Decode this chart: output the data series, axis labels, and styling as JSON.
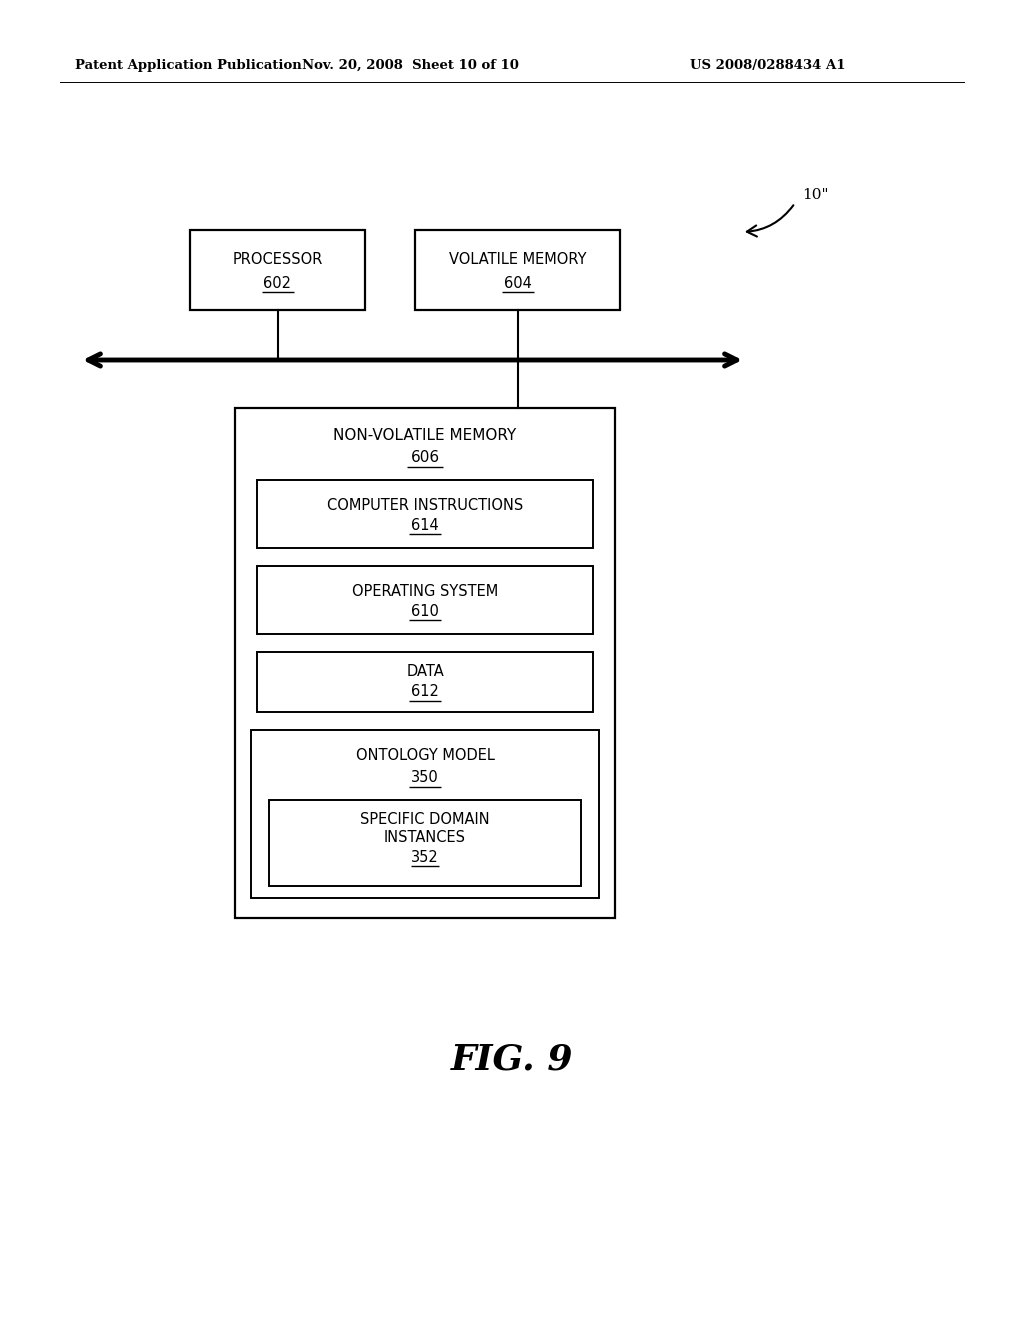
{
  "bg_color": "#ffffff",
  "header_left": "Patent Application Publication",
  "header_mid": "Nov. 20, 2008  Sheet 10 of 10",
  "header_right": "US 2008/0288434 A1",
  "fig_label": "FIG. 9",
  "ref_label": "10\"",
  "processor_label": "PROCESSOR",
  "processor_num": "602",
  "volatile_label": "VOLATILE MEMORY",
  "volatile_num": "604",
  "nonvolatile_label": "NON-VOLATILE MEMORY",
  "nonvolatile_num": "606",
  "comp_instr_label": "COMPUTER INSTRUCTIONS",
  "comp_instr_num": "614",
  "os_label": "OPERATING SYSTEM",
  "os_num": "610",
  "data_label": "DATA",
  "data_num": "612",
  "ontology_label": "ONTOLOGY MODEL",
  "ontology_num": "350",
  "specific_line1": "SPECIFIC DOMAIN",
  "specific_line2": "INSTANCES",
  "specific_num": "352"
}
